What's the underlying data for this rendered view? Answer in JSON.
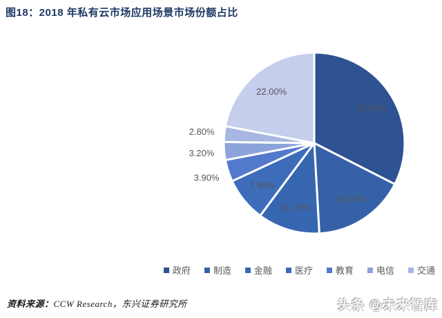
{
  "title": "图18：2018 年私有云市场应用场景市场份额占比",
  "chart_data": {
    "type": "pie",
    "title": "2018 年私有云市场应用场景市场份额占比",
    "unit": "percent",
    "start_angle_deg": 0,
    "direction": "clockwise",
    "slices": [
      {
        "legend": "政府",
        "value": 32.5,
        "label": "32.50%",
        "color": "#2E5292",
        "label_position": "inside"
      },
      {
        "legend": "制造",
        "value": 16.6,
        "label": "16.60%",
        "color": "#3561A8",
        "label_position": "inside"
      },
      {
        "legend": "金融",
        "value": 11.1,
        "label": "11.10%",
        "color": "#3766B1",
        "label_position": "inside"
      },
      {
        "legend": "医疗",
        "value": 7.9,
        "label": "7.90%",
        "color": "#3D6CBB",
        "label_position": "inside"
      },
      {
        "legend": "教育",
        "value": 3.9,
        "label": "3.90%",
        "color": "#5379CC",
        "label_position": "outside"
      },
      {
        "legend": "电信",
        "value": 3.2,
        "label": "3.20%",
        "color": "#8CA3DB",
        "label_position": "outside"
      },
      {
        "legend": "交通",
        "value": 2.8,
        "label": "2.80%",
        "color": "#A7B7E3",
        "label_position": "outside"
      },
      {
        "legend": "",
        "value": 22.0,
        "label": "22.00%",
        "color": "#C5CEEB",
        "label_position": "inside"
      }
    ],
    "legend_visible": [
      "政府",
      "制造",
      "金融",
      "医疗",
      "教育",
      "电信",
      "交通"
    ],
    "legend_position": "bottom",
    "slice_border_color": "#FFFFFF",
    "label_color": "#565656"
  },
  "source_note": {
    "prefix": "资料来源：",
    "text": "CCW Research，东兴证券研究所"
  },
  "watermark": "头条 @未来智库",
  "colors": {
    "title": "#1F3864",
    "legend_text": "#595959",
    "background": "#FFFFFF"
  }
}
